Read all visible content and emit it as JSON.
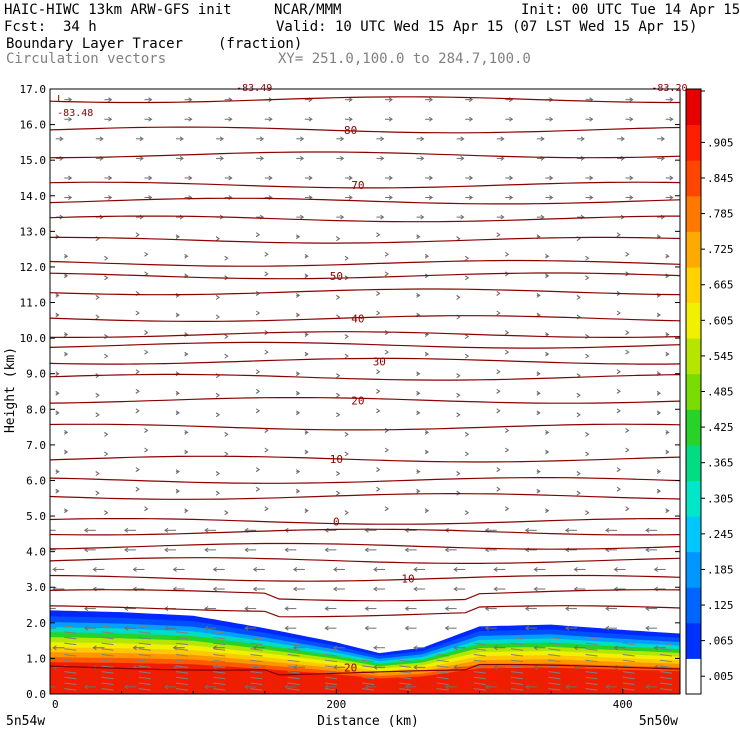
{
  "header": {
    "model": "HAIC-HIWC 13km ARW-GFS init",
    "org": "NCAR/MMM",
    "init": "Init: 00 UTC Tue 14 Apr 15",
    "fcst_label": "Fcst:",
    "fcst_value": "34 h",
    "valid": "Valid: 10 UTC Wed 15 Apr 15 (07 LST Wed 15 Apr 15)",
    "field": "Boundary Layer Tracer",
    "units": "(fraction)",
    "vectors": "Circulation vectors",
    "xsection": "XY= 251.0,100.0 to 284.7,100.0"
  },
  "chart_data": {
    "type": "cross-section",
    "ylabel": "Height (km)",
    "xlabel": "Distance (km)",
    "xlim": [
      0,
      440
    ],
    "ylim": [
      0,
      17
    ],
    "y_ticks": [
      "0.0",
      "1.0",
      "2.0",
      "3.0",
      "4.0",
      "5.0",
      "6.0",
      "7.0",
      "8.0",
      "9.0",
      "10.0",
      "11.0",
      "12.0",
      "13.0",
      "14.0",
      "15.0",
      "16.0",
      "17.0"
    ],
    "x_ticks": [
      {
        "value": 0,
        "label": "0"
      },
      {
        "value": 200,
        "label": "200"
      },
      {
        "value": 400,
        "label": "400"
      }
    ],
    "x_end_labels": {
      "left": "5n54w",
      "right": "5n50w"
    },
    "colorbar": {
      "labels": [
        ".005",
        ".065",
        ".125",
        ".185",
        ".245",
        ".305",
        ".365",
        ".425",
        ".485",
        ".545",
        ".605",
        ".665",
        ".725",
        ".785",
        ".845",
        ".905"
      ],
      "colors": [
        "#ffffff",
        "#0032ff",
        "#0064ff",
        "#0096ff",
        "#00c8ff",
        "#00e6c8",
        "#00dc82",
        "#28d228",
        "#78dc00",
        "#b4e600",
        "#f0f000",
        "#ffd200",
        "#ffaa00",
        "#ff7800",
        "#ff4600",
        "#ff1e00",
        "#e60000"
      ]
    },
    "tracer_top_km": [
      {
        "x": 0,
        "y": 2.35
      },
      {
        "x": 50,
        "y": 2.3
      },
      {
        "x": 100,
        "y": 2.2
      },
      {
        "x": 150,
        "y": 1.85
      },
      {
        "x": 200,
        "y": 1.45
      },
      {
        "x": 230,
        "y": 1.15
      },
      {
        "x": 260,
        "y": 1.3
      },
      {
        "x": 300,
        "y": 1.9
      },
      {
        "x": 350,
        "y": 1.95
      },
      {
        "x": 400,
        "y": 1.8
      },
      {
        "x": 440,
        "y": 1.7
      }
    ],
    "isotherms": [
      {
        "label": "80",
        "label_x": 210,
        "label_y": 15.85,
        "level": 15.85
      },
      {
        "label": "70",
        "label_x": 215,
        "label_y": 14.3,
        "level": 14.3
      },
      {
        "label": "50",
        "label_x": 200,
        "label_y": 11.75,
        "level": 11.75
      },
      {
        "label": "40",
        "label_x": 215,
        "label_y": 10.55,
        "level": 10.55
      },
      {
        "label": "30",
        "label_x": 230,
        "label_y": 9.35,
        "level": 9.35
      },
      {
        "label": "20",
        "label_x": 215,
        "label_y": 8.25,
        "level": 8.25
      },
      {
        "label": "10",
        "label_x": 200,
        "label_y": 6.6,
        "level": 6.6
      },
      {
        "label": "0",
        "label_x": 200,
        "label_y": 4.85,
        "level": 4.85
      },
      {
        "label": "10",
        "label_x": 250,
        "label_y": 3.25,
        "level": 3.25
      },
      {
        "label": "20",
        "label_x": 210,
        "label_y": 0.75,
        "level": 0.75
      }
    ],
    "extra_isotherm_levels": [
      16.7,
      15.15,
      13.85,
      13.35,
      12.75,
      12.1,
      11.3,
      10.1,
      9.8,
      8.9,
      7.5,
      6.0,
      5.55,
      4.55,
      4.15,
      3.75,
      2.85,
      2.4
    ],
    "annotations": [
      {
        "text": "L",
        "x": 5,
        "y": 16.75
      },
      {
        "text": "-83.48",
        "x": 5,
        "y": 16.35
      },
      {
        "text": "-83.49",
        "x": 130,
        "y": 17.05
      },
      {
        "text": "-83.20",
        "x": 420,
        "y": 17.05
      }
    ]
  }
}
